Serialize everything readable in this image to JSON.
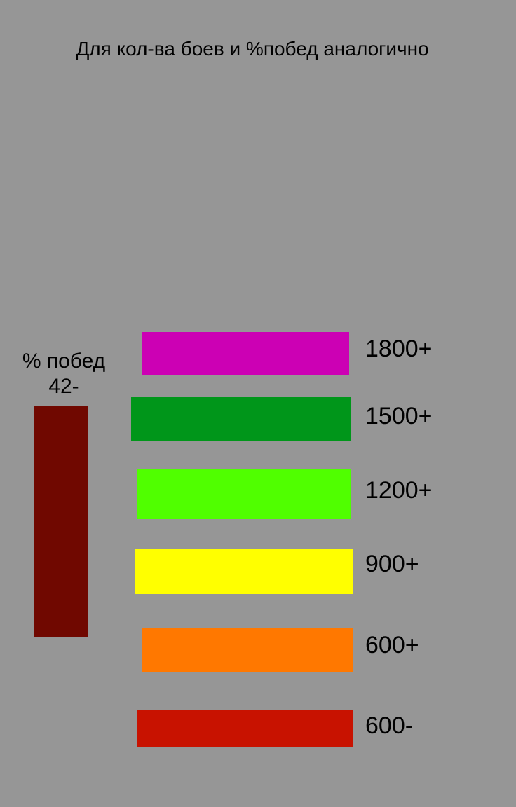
{
  "heading": "Для кол-ва боев и %побед аналогично",
  "winrate": {
    "label": "% побед",
    "value": "42-",
    "color": "#700800"
  },
  "legend": [
    {
      "label": "1800+",
      "color": "#CC00B4"
    },
    {
      "label": "1500+",
      "color": "#00961A"
    },
    {
      "label": "1200+",
      "color": "#50FF00"
    },
    {
      "label": "900+",
      "color": "#FFFF00"
    },
    {
      "label": "600+",
      "color": "#FF7800"
    },
    {
      "label": "600-",
      "color": "#C81200"
    }
  ]
}
